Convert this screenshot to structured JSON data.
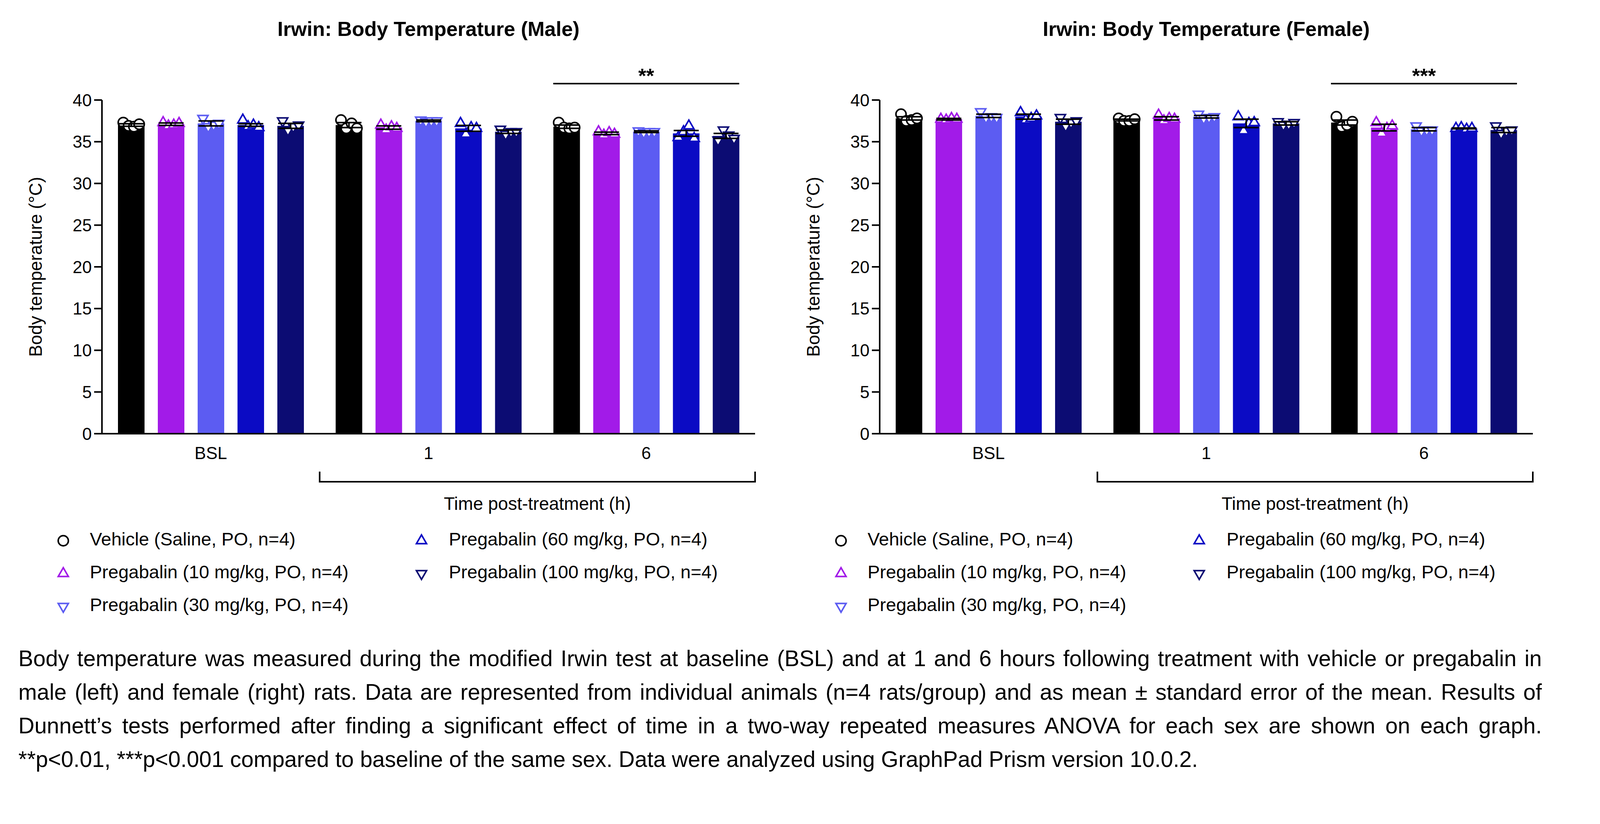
{
  "chart_data": [
    {
      "type": "bar",
      "title": "Irwin: Body Temperature (Male)",
      "y_label": "Body temperature (°C)",
      "x_label": "Time post-treatment (h)",
      "x_label_span": [
        "1",
        "6"
      ],
      "categories": [
        "BSL",
        "1",
        "6"
      ],
      "ylim": [
        0,
        40
      ],
      "yticks": [
        0,
        5,
        10,
        15,
        20,
        25,
        30,
        35,
        40
      ],
      "legend": "bottom",
      "annotations": [
        {
          "text": "**",
          "categories": [
            "6"
          ]
        }
      ],
      "series": [
        {
          "name": "Vehicle (Saline, PO, n=4)",
          "color": "#000000",
          "marker": "circle",
          "values": [
            37.0,
            37.0,
            36.8
          ],
          "errors": [
            0.15,
            0.3,
            0.2
          ],
          "points": [
            [
              37.3,
              36.9,
              36.8,
              37.1
            ],
            [
              37.6,
              36.6,
              37.2,
              36.6
            ],
            [
              37.3,
              36.7,
              36.6,
              36.7
            ]
          ]
        },
        {
          "name": "Pregabalin (10 mg/kg, PO, n=4)",
          "color": "#a21be8",
          "marker": "triangle-up",
          "values": [
            37.1,
            36.7,
            36.0
          ],
          "errors": [
            0.15,
            0.2,
            0.15
          ],
          "points": [
            [
              37.3,
              36.9,
              37.0,
              37.2
            ],
            [
              37.0,
              36.4,
              36.8,
              36.6
            ],
            [
              36.2,
              35.8,
              36.1,
              35.9
            ]
          ]
        },
        {
          "name": "Pregabalin (30 mg/kg, PO, n=4)",
          "color": "#5c5cf2",
          "marker": "triangle-down",
          "values": [
            37.2,
            37.5,
            36.2
          ],
          "errors": [
            0.3,
            0.1,
            0.1
          ],
          "points": [
            [
              37.8,
              36.8,
              37.0,
              37.2
            ],
            [
              37.6,
              37.4,
              37.5,
              37.5
            ],
            [
              36.3,
              36.1,
              36.2,
              36.2
            ]
          ]
        },
        {
          "name": "Pregabalin (60 mg/kg, PO, n=4)",
          "color": "#0b0bc4",
          "marker": "triangle-up",
          "values": [
            37.0,
            36.6,
            36.0
          ],
          "errors": [
            0.15,
            0.35,
            0.35
          ],
          "points": [
            [
              37.6,
              36.8,
              37.0,
              36.7
            ],
            [
              37.2,
              35.9,
              36.7,
              36.6
            ],
            [
              35.5,
              36.2,
              36.9,
              35.4
            ]
          ]
        },
        {
          "name": "Pregabalin (100 mg/kg, PO, n=4)",
          "color": "#0c0c73",
          "marker": "triangle-down",
          "values": [
            36.9,
            36.2,
            35.7
          ],
          "errors": [
            0.3,
            0.2,
            0.3
          ],
          "points": [
            [
              37.5,
              36.4,
              36.8,
              37.0
            ],
            [
              36.5,
              35.9,
              36.2,
              36.2
            ],
            [
              35.2,
              36.4,
              35.8,
              35.4
            ]
          ]
        }
      ]
    },
    {
      "type": "bar",
      "title": "Irwin: Body Temperature (Female)",
      "y_label": "Body temperature (°C)",
      "x_label": "Time post-treatment (h)",
      "x_label_span": [
        "1",
        "6"
      ],
      "categories": [
        "BSL",
        "1",
        "6"
      ],
      "ylim": [
        0,
        40
      ],
      "yticks": [
        0,
        5,
        10,
        15,
        20,
        25,
        30,
        35,
        40
      ],
      "legend": "bottom",
      "annotations": [
        {
          "text": "***",
          "categories": [
            "6"
          ]
        }
      ],
      "series": [
        {
          "name": "Vehicle (Saline, PO, n=4)",
          "color": "#000000",
          "marker": "circle",
          "values": [
            37.8,
            37.6,
            37.3
          ],
          "errors": [
            0.2,
            0.1,
            0.3
          ],
          "points": [
            [
              38.3,
              37.5,
              37.6,
              37.8
            ],
            [
              37.8,
              37.5,
              37.5,
              37.7
            ],
            [
              38.0,
              36.8,
              37.0,
              37.4
            ]
          ]
        },
        {
          "name": "Pregabalin (10 mg/kg, PO, n=4)",
          "color": "#a21be8",
          "marker": "triangle-up",
          "values": [
            37.7,
            37.8,
            36.7
          ],
          "errors": [
            0.1,
            0.2,
            0.4
          ],
          "points": [
            [
              37.7,
              37.6,
              37.8,
              37.7
            ],
            [
              38.2,
              37.5,
              37.8,
              37.7
            ],
            [
              37.3,
              36.0,
              36.6,
              36.9
            ]
          ]
        },
        {
          "name": "Pregabalin (30 mg/kg, PO, n=4)",
          "color": "#5c5cf2",
          "marker": "triangle-down",
          "values": [
            38.1,
            38.0,
            36.5
          ],
          "errors": [
            0.2,
            0.15,
            0.2
          ],
          "points": [
            [
              38.6,
              37.9,
              38.0,
              37.9
            ],
            [
              38.3,
              37.8,
              37.9,
              38.0
            ],
            [
              36.9,
              36.3,
              36.4,
              36.4
            ]
          ]
        },
        {
          "name": "Pregabalin (60 mg/kg, PO, n=4)",
          "color": "#0b0bc4",
          "marker": "triangle-up",
          "values": [
            38.0,
            37.2,
            36.6
          ],
          "errors": [
            0.3,
            0.5,
            0.05
          ],
          "points": [
            [
              38.5,
              37.6,
              37.8,
              38.1
            ],
            [
              38.0,
              36.3,
              37.2,
              37.3
            ],
            [
              36.6,
              36.7,
              36.5,
              36.6
            ]
          ]
        },
        {
          "name": "Pregabalin (100 mg/kg, PO, n=4)",
          "color": "#0c0c73",
          "marker": "triangle-down",
          "values": [
            37.4,
            37.2,
            36.4
          ],
          "errors": [
            0.3,
            0.2,
            0.3
          ],
          "points": [
            [
              37.9,
              36.9,
              37.3,
              37.5
            ],
            [
              37.4,
              37.0,
              37.1,
              37.3
            ],
            [
              36.9,
              36.0,
              36.3,
              36.4
            ]
          ]
        }
      ]
    }
  ],
  "caption": "Body temperature was measured during the modified Irwin test at baseline (BSL) and at 1 and 6 hours following treatment with vehicle or pregabalin in male (left) and female (right) rats. Data are represented from individual animals (n=4 rats/group) and as mean ± standard error of the mean. Results of Dunnett’s tests performed after finding a significant effect of time in a two-way repeated measures ANOVA for each sex are shown on each graph. **p<0.01, ***p<0.001 compared to baseline of the same sex. Data were analyzed using GraphPad Prism version 10.0.2."
}
